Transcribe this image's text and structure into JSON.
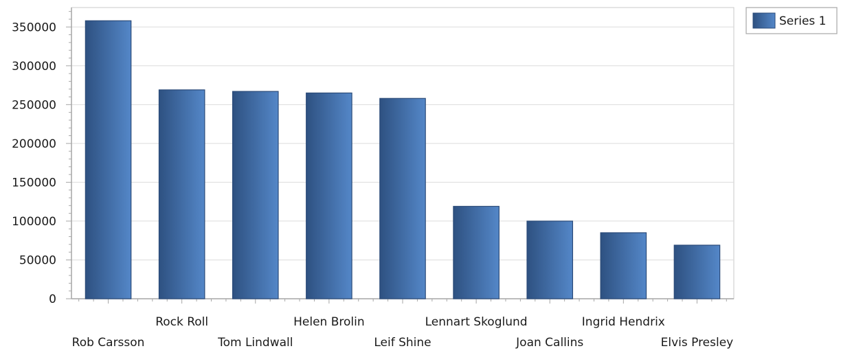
{
  "chart_data": {
    "type": "bar",
    "title": "",
    "xlabel": "",
    "ylabel": "",
    "categories": [
      "Rob Carsson",
      "Rock Roll",
      "Tom Lindwall",
      "Helen Brolin",
      "Leif Shine",
      "Lennart Skoglund",
      "Joan Callins",
      "Ingrid Hendrix",
      "Elvis Presley"
    ],
    "series": [
      {
        "name": "Series 1",
        "values": [
          358000,
          269000,
          267000,
          265000,
          258000,
          119000,
          100000,
          85000,
          69000
        ]
      }
    ],
    "ylim": [
      0,
      375000
    ],
    "yticks": [
      0,
      50000,
      100000,
      150000,
      200000,
      250000,
      300000,
      350000
    ],
    "grid": true,
    "legend": {
      "position": "top-right"
    },
    "colors": {
      "bar_dark": "#2e5181",
      "bar_light": "#5487c8",
      "bar_edge": "#2a4a78",
      "grid": "#dcdcdc",
      "axis": "#a6a6a6"
    }
  }
}
